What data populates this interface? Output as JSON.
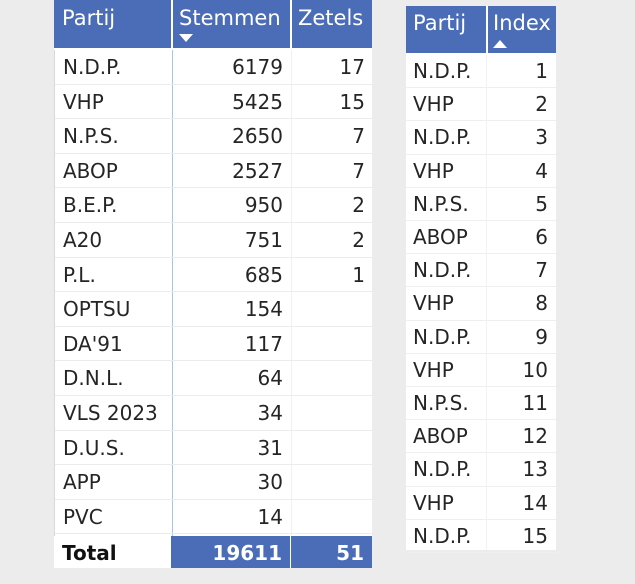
{
  "left_table": {
    "headers": {
      "partij": "Partij",
      "stemmen": "Stemmen",
      "zetels": "Zetels"
    },
    "sort_column": "Stemmen",
    "sort_direction": "descending",
    "rows": [
      {
        "partij": "N.D.P.",
        "stemmen": "6179",
        "zetels": "17"
      },
      {
        "partij": "VHP",
        "stemmen": "5425",
        "zetels": "15"
      },
      {
        "partij": "N.P.S.",
        "stemmen": "2650",
        "zetels": "7"
      },
      {
        "partij": "ABOP",
        "stemmen": "2527",
        "zetels": "7"
      },
      {
        "partij": "B.E.P.",
        "stemmen": "950",
        "zetels": "2"
      },
      {
        "partij": "A20",
        "stemmen": "751",
        "zetels": "2"
      },
      {
        "partij": "P.L.",
        "stemmen": "685",
        "zetels": "1"
      },
      {
        "partij": "OPTSU",
        "stemmen": "154",
        "zetels": ""
      },
      {
        "partij": "DA'91",
        "stemmen": "117",
        "zetels": ""
      },
      {
        "partij": "D.N.L.",
        "stemmen": "64",
        "zetels": ""
      },
      {
        "partij": "VLS 2023",
        "stemmen": "34",
        "zetels": ""
      },
      {
        "partij": "D.U.S.",
        "stemmen": "31",
        "zetels": ""
      },
      {
        "partij": "APP",
        "stemmen": "30",
        "zetels": ""
      },
      {
        "partij": "PVC",
        "stemmen": "14",
        "zetels": ""
      }
    ],
    "total": {
      "label": "Total",
      "stemmen": "19611",
      "zetels": "51"
    }
  },
  "right_table": {
    "headers": {
      "partij": "Partij",
      "index": "Index"
    },
    "sort_column": "Index",
    "sort_direction": "ascending",
    "rows": [
      {
        "partij": "N.D.P.",
        "index": "1"
      },
      {
        "partij": "VHP",
        "index": "2"
      },
      {
        "partij": "N.D.P.",
        "index": "3"
      },
      {
        "partij": "VHP",
        "index": "4"
      },
      {
        "partij": "N.P.S.",
        "index": "5"
      },
      {
        "partij": "ABOP",
        "index": "6"
      },
      {
        "partij": "N.D.P.",
        "index": "7"
      },
      {
        "partij": "VHP",
        "index": "8"
      },
      {
        "partij": "N.D.P.",
        "index": "9"
      },
      {
        "partij": "VHP",
        "index": "10"
      },
      {
        "partij": "N.P.S.",
        "index": "11"
      },
      {
        "partij": "ABOP",
        "index": "12"
      },
      {
        "partij": "N.D.P.",
        "index": "13"
      },
      {
        "partij": "VHP",
        "index": "14"
      },
      {
        "partij": "N.D.P.",
        "index": "15"
      }
    ]
  },
  "colors": {
    "header_bg": "#4b6cb7",
    "header_text": "#ffffff",
    "body_bg": "#ffffff",
    "page_bg": "#ececec",
    "text": "#252525"
  },
  "icons": {
    "sort_desc": "sort-descending-icon",
    "sort_asc": "sort-ascending-icon"
  }
}
